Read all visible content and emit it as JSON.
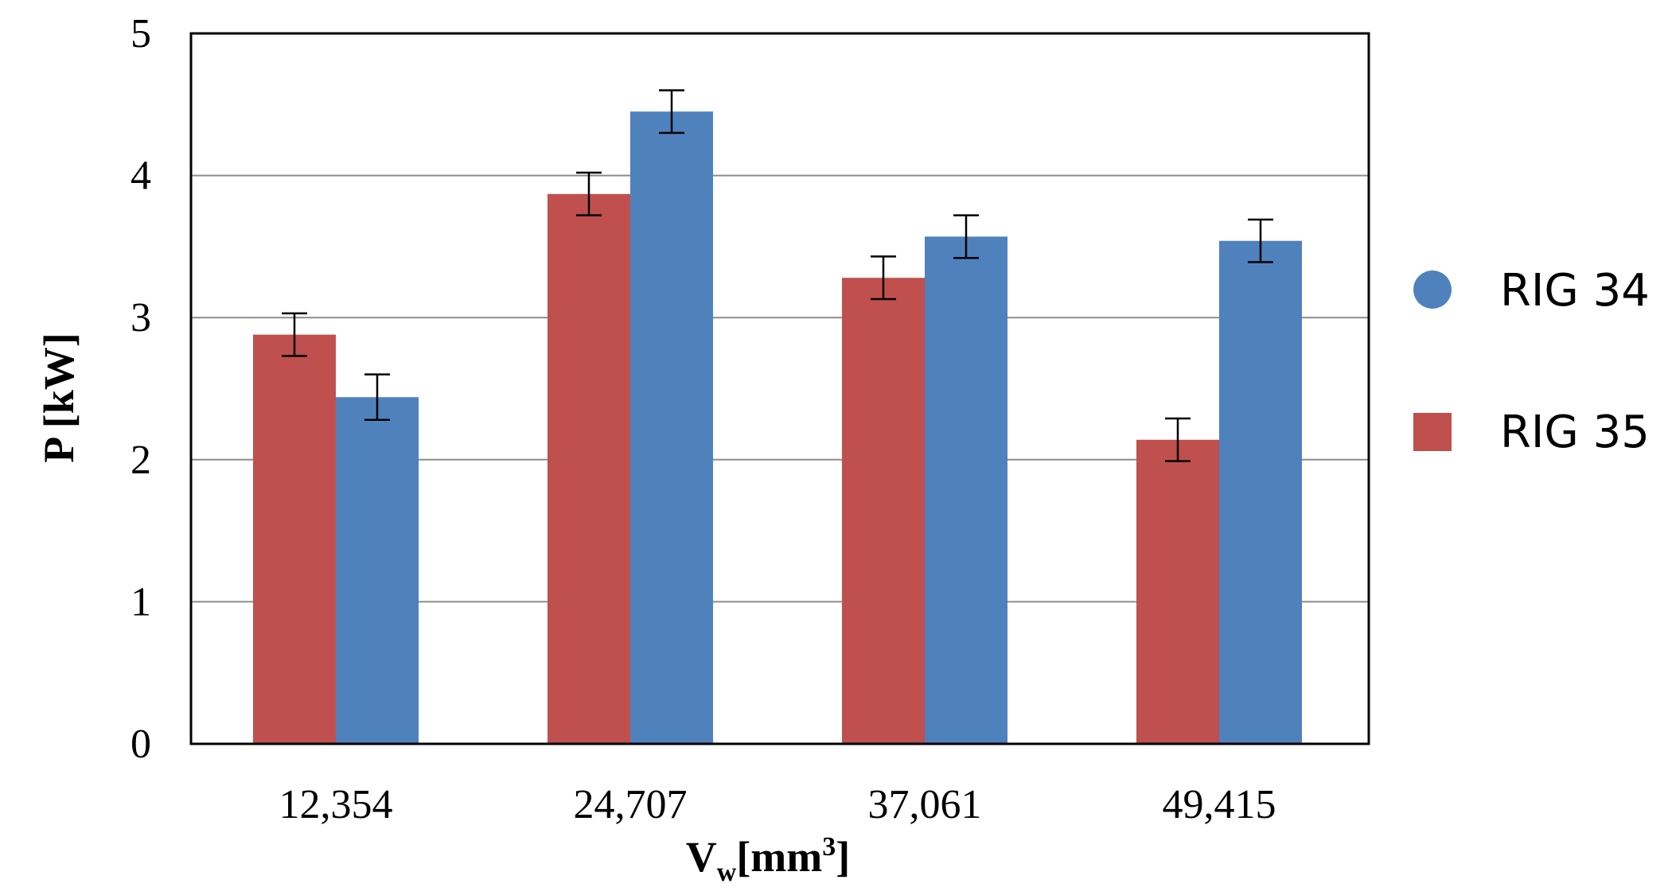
{
  "chart_data": {
    "type": "bar",
    "title": "",
    "xlabel": {
      "main": "V",
      "subscript": "w",
      "unit_open": "[mm",
      "superscript": "3",
      "unit_close": "]"
    },
    "ylabel": "P [kW]",
    "categories": [
      "12,354",
      "24,707",
      "37,061",
      "49,415"
    ],
    "ylim": [
      0,
      5
    ],
    "yticks": [
      "0",
      "1",
      "2",
      "3",
      "4",
      "5"
    ],
    "grid": true,
    "legend_position": "right",
    "series": [
      {
        "name": "RIG 35",
        "color": "#c0504d",
        "marker": "square",
        "values": [
          2.88,
          3.87,
          3.28,
          2.14
        ],
        "errors": [
          0.15,
          0.15,
          0.15,
          0.15
        ]
      },
      {
        "name": "RIG 34",
        "color": "#4f81bd",
        "marker": "circle",
        "values": [
          2.44,
          4.45,
          3.57,
          3.54
        ],
        "errors": [
          0.16,
          0.15,
          0.15,
          0.15
        ]
      }
    ],
    "legend_order": [
      "RIG 34",
      "RIG 35"
    ]
  }
}
